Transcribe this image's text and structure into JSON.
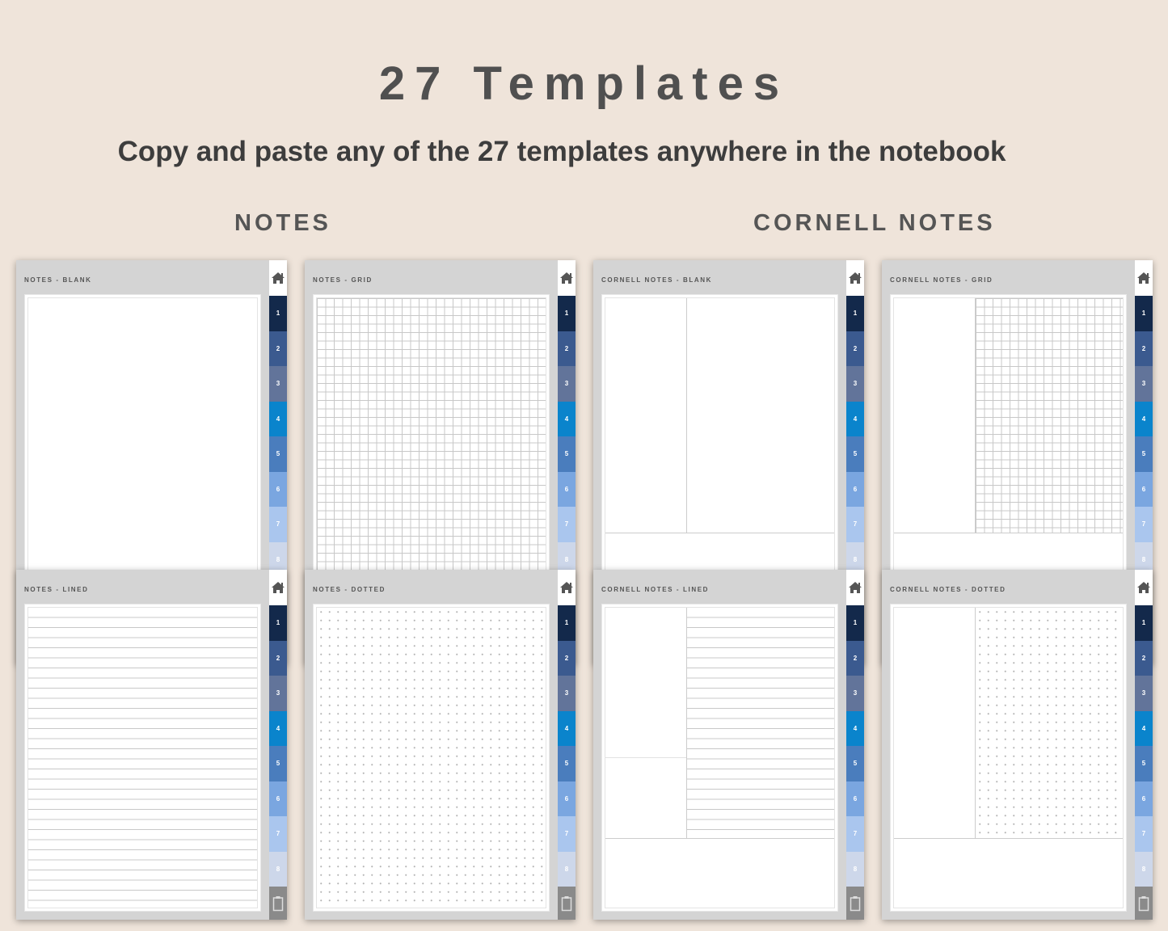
{
  "header": {
    "title": "27 Templates",
    "subtitle": "Copy and paste any of the 27 templates anywhere in the notebook"
  },
  "sections": [
    "NOTES",
    "CORNELL NOTES"
  ],
  "tabs": [
    "1",
    "2",
    "3",
    "4",
    "5",
    "6",
    "7",
    "8"
  ],
  "tab_colors": [
    "#13294b",
    "#3b5a8f",
    "#62749a",
    "#0a84cc",
    "#4a7dbd",
    "#7aa6e0",
    "#aac6ee",
    "#cdd7ea"
  ],
  "cards": [
    {
      "label": "NOTES - BLANK",
      "pattern": "blank",
      "cornell": false
    },
    {
      "label": "NOTES - GRID",
      "pattern": "grid",
      "cornell": false
    },
    {
      "label": "CORNELL NOTES - BLANK",
      "pattern": "blank",
      "cornell": true
    },
    {
      "label": "CORNELL NOTES - GRID",
      "pattern": "grid",
      "cornell": true
    },
    {
      "label": "NOTES - LINED",
      "pattern": "lined",
      "cornell": false
    },
    {
      "label": "NOTES - DOTTED",
      "pattern": "dotted",
      "cornell": false
    },
    {
      "label": "CORNELL NOTES - LINED",
      "pattern": "lined",
      "cornell": true
    },
    {
      "label": "CORNELL NOTES - DOTTED",
      "pattern": "dotted",
      "cornell": true
    }
  ]
}
